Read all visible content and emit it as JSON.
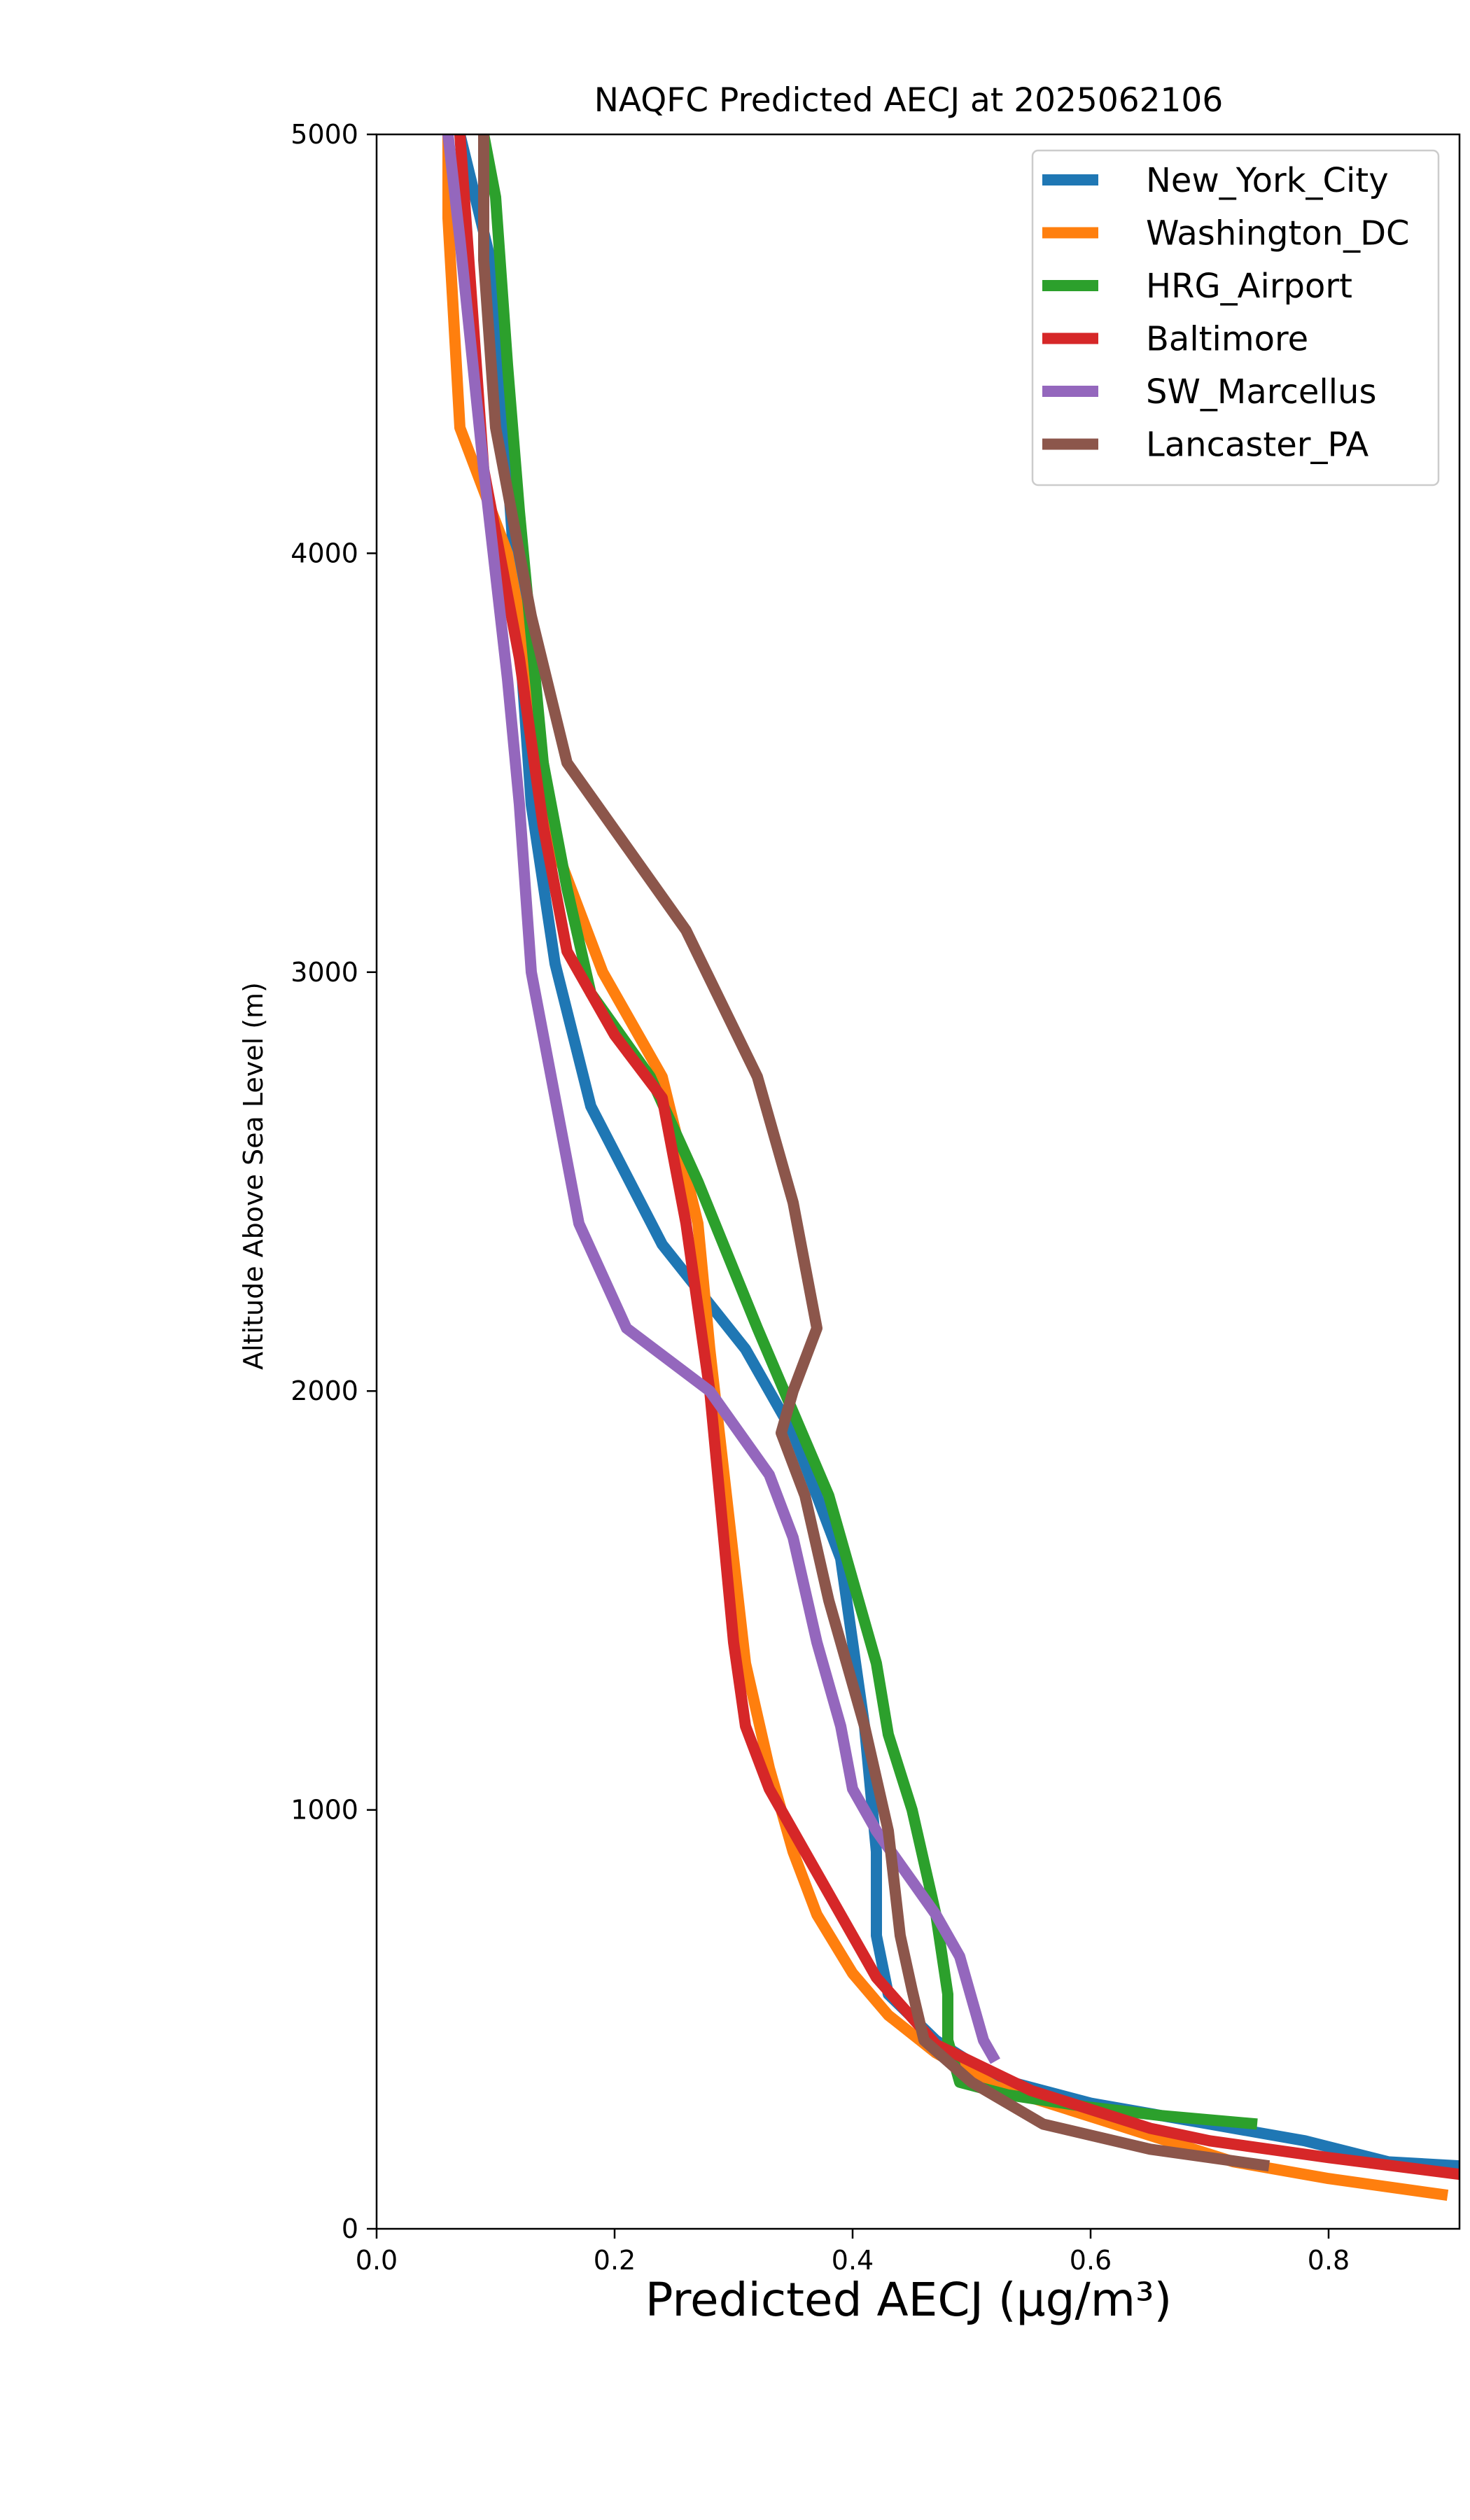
{
  "chart_data": {
    "type": "line",
    "title": "NAQFC Predicted AECJ at 2025062106",
    "xlabel": "Predicted AECJ (μg/m³)",
    "ylabel": "Altitude Above Sea Level (m)",
    "xlim": [
      0.0,
      0.91
    ],
    "ylim": [
      0,
      5000
    ],
    "x_ticks": [
      "0.0",
      "0.2",
      "0.4",
      "0.6",
      "0.8"
    ],
    "x_tick_values": [
      0.0,
      0.2,
      0.4,
      0.6,
      0.8
    ],
    "y_ticks": [
      "0",
      "1000",
      "2000",
      "3000",
      "4000",
      "5000"
    ],
    "y_tick_values": [
      0,
      1000,
      2000,
      3000,
      4000,
      5000
    ],
    "grid": false,
    "legend_position": "top-right",
    "series": [
      {
        "name": "New_York_City",
        "color": "#1f77b4",
        "points": [
          [
            0.91,
            150
          ],
          [
            0.85,
            160
          ],
          [
            0.78,
            210
          ],
          [
            0.7,
            250
          ],
          [
            0.6,
            300
          ],
          [
            0.52,
            360
          ],
          [
            0.47,
            450
          ],
          [
            0.43,
            560
          ],
          [
            0.42,
            700
          ],
          [
            0.42,
            900
          ],
          [
            0.41,
            1200
          ],
          [
            0.39,
            1600
          ],
          [
            0.35,
            1900
          ],
          [
            0.31,
            2100
          ],
          [
            0.24,
            2350
          ],
          [
            0.18,
            2680
          ],
          [
            0.15,
            3020
          ],
          [
            0.13,
            3400
          ],
          [
            0.12,
            3800
          ],
          [
            0.11,
            4200
          ],
          [
            0.1,
            4650
          ],
          [
            0.07,
            5000
          ]
        ]
      },
      {
        "name": "Washington_DC",
        "color": "#ff7f0e",
        "points": [
          [
            0.9,
            80
          ],
          [
            0.8,
            120
          ],
          [
            0.72,
            160
          ],
          [
            0.62,
            250
          ],
          [
            0.52,
            340
          ],
          [
            0.47,
            420
          ],
          [
            0.43,
            510
          ],
          [
            0.4,
            610
          ],
          [
            0.37,
            750
          ],
          [
            0.35,
            900
          ],
          [
            0.33,
            1100
          ],
          [
            0.31,
            1350
          ],
          [
            0.3,
            1600
          ],
          [
            0.29,
            1850
          ],
          [
            0.28,
            2100
          ],
          [
            0.27,
            2400
          ],
          [
            0.24,
            2750
          ],
          [
            0.19,
            3000
          ],
          [
            0.15,
            3300
          ],
          [
            0.13,
            3700
          ],
          [
            0.11,
            4000
          ],
          [
            0.07,
            4300
          ],
          [
            0.06,
            4800
          ],
          [
            0.06,
            5000
          ]
        ]
      },
      {
        "name": "HRG_Airport",
        "color": "#2ca02c",
        "points": [
          [
            0.74,
            250
          ],
          [
            0.66,
            270
          ],
          [
            0.6,
            290
          ],
          [
            0.53,
            320
          ],
          [
            0.49,
            350
          ],
          [
            0.48,
            450
          ],
          [
            0.48,
            560
          ],
          [
            0.47,
            750
          ],
          [
            0.45,
            1000
          ],
          [
            0.43,
            1180
          ],
          [
            0.42,
            1350
          ],
          [
            0.4,
            1550
          ],
          [
            0.38,
            1750
          ],
          [
            0.35,
            1950
          ],
          [
            0.32,
            2150
          ],
          [
            0.27,
            2500
          ],
          [
            0.23,
            2750
          ],
          [
            0.18,
            2950
          ],
          [
            0.16,
            3200
          ],
          [
            0.14,
            3500
          ],
          [
            0.13,
            3800
          ],
          [
            0.12,
            4100
          ],
          [
            0.11,
            4450
          ],
          [
            0.1,
            4850
          ],
          [
            0.09,
            5000
          ]
        ]
      },
      {
        "name": "Baltimore",
        "color": "#d62728",
        "points": [
          [
            0.91,
            130
          ],
          [
            0.8,
            170
          ],
          [
            0.7,
            210
          ],
          [
            0.65,
            240
          ],
          [
            0.55,
            330
          ],
          [
            0.47,
            440
          ],
          [
            0.42,
            600
          ],
          [
            0.39,
            750
          ],
          [
            0.36,
            900
          ],
          [
            0.33,
            1050
          ],
          [
            0.31,
            1200
          ],
          [
            0.3,
            1400
          ],
          [
            0.29,
            1700
          ],
          [
            0.28,
            2000
          ],
          [
            0.27,
            2200
          ],
          [
            0.26,
            2400
          ],
          [
            0.24,
            2700
          ],
          [
            0.2,
            2850
          ],
          [
            0.16,
            3050
          ],
          [
            0.14,
            3350
          ],
          [
            0.12,
            3750
          ],
          [
            0.09,
            4200
          ],
          [
            0.07,
            5000
          ]
        ]
      },
      {
        "name": "SW_Marcellus",
        "color": "#9467bd",
        "points": [
          [
            0.52,
            400
          ],
          [
            0.51,
            450
          ],
          [
            0.5,
            550
          ],
          [
            0.49,
            650
          ],
          [
            0.47,
            750
          ],
          [
            0.45,
            830
          ],
          [
            0.42,
            950
          ],
          [
            0.4,
            1050
          ],
          [
            0.39,
            1200
          ],
          [
            0.37,
            1400
          ],
          [
            0.35,
            1650
          ],
          [
            0.33,
            1800
          ],
          [
            0.28,
            2000
          ],
          [
            0.21,
            2150
          ],
          [
            0.17,
            2400
          ],
          [
            0.15,
            2700
          ],
          [
            0.13,
            3000
          ],
          [
            0.12,
            3400
          ],
          [
            0.11,
            3700
          ],
          [
            0.09,
            4200
          ],
          [
            0.07,
            4750
          ],
          [
            0.06,
            5000
          ]
        ]
      },
      {
        "name": "Lancaster_PA",
        "color": "#8c564b",
        "points": [
          [
            0.75,
            150
          ],
          [
            0.65,
            190
          ],
          [
            0.56,
            250
          ],
          [
            0.5,
            350
          ],
          [
            0.46,
            450
          ],
          [
            0.45,
            570
          ],
          [
            0.44,
            700
          ],
          [
            0.43,
            950
          ],
          [
            0.41,
            1200
          ],
          [
            0.38,
            1500
          ],
          [
            0.36,
            1750
          ],
          [
            0.34,
            1900
          ],
          [
            0.35,
            2000
          ],
          [
            0.37,
            2150
          ],
          [
            0.35,
            2450
          ],
          [
            0.32,
            2750
          ],
          [
            0.26,
            3100
          ],
          [
            0.16,
            3500
          ],
          [
            0.13,
            3850
          ],
          [
            0.1,
            4300
          ],
          [
            0.09,
            4700
          ],
          [
            0.09,
            5000
          ]
        ]
      }
    ]
  }
}
